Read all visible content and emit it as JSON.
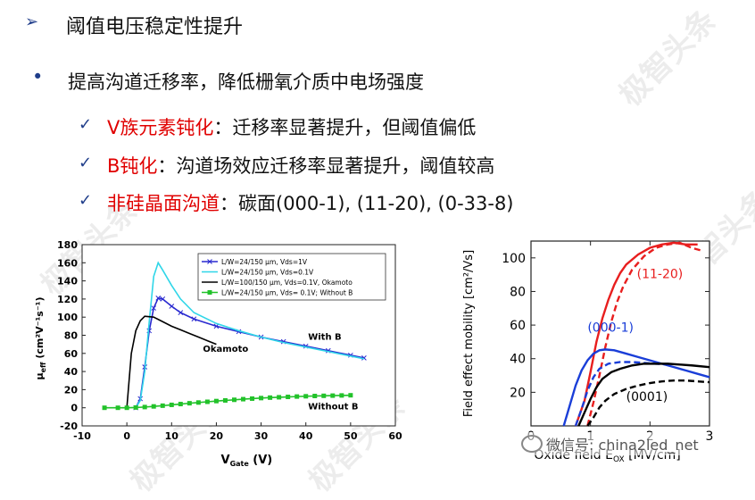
{
  "slide": {
    "title_marker": "➢",
    "title": "阈值电压稳定性提升",
    "bullet_marker": "•",
    "bullet": "提高沟道迁移率，降低栅氧介质中电场强度",
    "check_marker": "✓",
    "items": [
      {
        "highlight": "V族元素钝化",
        "text": "：迁移率显著提升，但阈值偏低"
      },
      {
        "highlight": "B钝化",
        "text": "：沟道场效应迁移率显著提升，阈值较高"
      },
      {
        "highlight": "非硅晶面沟道",
        "text": "：碳面(000-1), (11-20), (0-33-8)"
      }
    ],
    "watermark": "极智头条",
    "wechat_caption": "微信号: china2led_net",
    "highlight_color": "#e00000"
  },
  "chart_data": [
    {
      "type": "line",
      "xlabel": "V",
      "xlabel_sub": "Gate",
      "xlabel_unit": "(V)",
      "ylabel": "μ",
      "ylabel_sub": "eff",
      "ylabel_unit": "(cm²V⁻¹s⁻¹)",
      "xlim": [
        -10,
        60
      ],
      "ylim": [
        -20,
        180
      ],
      "xticks": [
        -10,
        0,
        10,
        20,
        30,
        40,
        50,
        60
      ],
      "yticks": [
        -20,
        0,
        20,
        40,
        60,
        80,
        100,
        120,
        140,
        160,
        180
      ],
      "legend_position": "top-right",
      "annotations": [
        "Okamoto",
        "With B",
        "Without B"
      ],
      "series": [
        {
          "name": "L/W=24/150 μm, Vds=1V",
          "color": "#2a2ad0",
          "marker": "x",
          "x": [
            2,
            3,
            4,
            5,
            6,
            7,
            8,
            10,
            12,
            15,
            20,
            25,
            30,
            35,
            40,
            45,
            50,
            53
          ],
          "y": [
            0,
            10,
            45,
            85,
            110,
            121,
            120,
            112,
            105,
            98,
            90,
            84,
            78,
            73,
            68,
            63,
            58,
            55
          ]
        },
        {
          "name": "L/W=24/150 μm, Vds=0.1V",
          "color": "#2fd6e8",
          "marker": "none",
          "x": [
            2,
            3,
            4,
            5,
            6,
            7,
            8,
            10,
            12,
            15,
            20,
            25,
            30,
            35,
            40,
            45,
            50,
            53
          ],
          "y": [
            0,
            8,
            40,
            95,
            145,
            160,
            152,
            135,
            120,
            105,
            93,
            85,
            78,
            72,
            67,
            62,
            57,
            54
          ]
        },
        {
          "name": "L/W=100/150 μm, Vds=0.1V, Okamoto",
          "color": "#000000",
          "marker": "none",
          "x": [
            0,
            0.5,
            1,
            2,
            3,
            4,
            6,
            8,
            10,
            12,
            14,
            16,
            18,
            20
          ],
          "y": [
            0,
            30,
            60,
            85,
            96,
            101,
            100,
            95,
            90,
            86,
            82,
            78,
            74,
            70
          ]
        },
        {
          "name": "L/W=24/150 μm, Vds= 0.1V; Without B",
          "color": "#22c22a",
          "marker": "square",
          "x": [
            -5,
            -2,
            0,
            2,
            4,
            6,
            8,
            10,
            12,
            14,
            16,
            18,
            20,
            22,
            24,
            26,
            28,
            30,
            32,
            34,
            36,
            38,
            40,
            42,
            44,
            46,
            48,
            50
          ],
          "y": [
            0,
            0,
            0,
            0.3,
            0.8,
            1.5,
            2.3,
            3.2,
            4.1,
            5,
            5.8,
            6.6,
            7.4,
            8.1,
            8.8,
            9.5,
            10.1,
            10.7,
            11.2,
            11.6,
            12,
            12.4,
            12.7,
            13,
            13.2,
            13.4,
            13.6,
            13.8
          ]
        }
      ]
    },
    {
      "type": "line",
      "xlabel": "Oxide field E",
      "xlabel_sub": "OX",
      "xlabel_unit": "[MV/cm]",
      "ylabel": "Field effect mobility [cm²/Vs]",
      "xlim": [
        0,
        3
      ],
      "ylim": [
        0,
        110
      ],
      "xticks": [
        0,
        1,
        2,
        3
      ],
      "yticks": [
        20,
        40,
        60,
        80,
        100
      ],
      "annotations": [
        "(11-20)",
        "(000-1)",
        "(0001)"
      ],
      "series": [
        {
          "group": "(11-20)",
          "style": "solid",
          "color": "#e81e1e",
          "x": [
            0.75,
            0.9,
            1.0,
            1.1,
            1.2,
            1.3,
            1.4,
            1.5,
            1.6,
            1.8,
            2.0,
            2.2,
            2.4,
            2.6,
            2.8
          ],
          "y": [
            0,
            15,
            32,
            50,
            64,
            75,
            84,
            91,
            96,
            102,
            106,
            108,
            109,
            108,
            108
          ]
        },
        {
          "group": "(11-20)",
          "style": "dashed",
          "color": "#e81e1e",
          "x": [
            0.95,
            1.05,
            1.15,
            1.25,
            1.35,
            1.45,
            1.55,
            1.7,
            1.9,
            2.1,
            2.3,
            2.5,
            2.7,
            2.9
          ],
          "y": [
            0,
            14,
            30,
            47,
            62,
            74,
            83,
            93,
            101,
            106,
            108,
            109,
            106,
            104
          ]
        },
        {
          "group": "(000-1)",
          "style": "solid",
          "color": "#1a3ed8",
          "x": [
            0.55,
            0.65,
            0.75,
            0.85,
            0.95,
            1.05,
            1.15,
            1.25,
            1.4,
            1.6,
            1.8,
            2.0,
            2.2,
            2.4,
            2.6,
            2.8,
            3.0
          ],
          "y": [
            0,
            12,
            24,
            33,
            39,
            43,
            45,
            45.5,
            45,
            43,
            41,
            39,
            37,
            35,
            33,
            31,
            29
          ]
        },
        {
          "group": "(000-1)",
          "style": "dashed",
          "color": "#1a3ed8",
          "x": [
            0.75,
            0.85,
            0.95,
            1.05,
            1.15,
            1.3,
            1.5,
            1.7,
            1.9,
            2.1,
            2.3
          ],
          "y": [
            0,
            10,
            21,
            29,
            34,
            37,
            38,
            38,
            37.5,
            37,
            36.5
          ]
        },
        {
          "group": "(0001)",
          "style": "solid",
          "color": "#000000",
          "x": [
            0.8,
            0.9,
            1.0,
            1.1,
            1.2,
            1.35,
            1.5,
            1.7,
            1.9,
            2.1,
            2.3,
            2.5,
            2.7,
            3.0
          ],
          "y": [
            0,
            8,
            16,
            23,
            28,
            32,
            34,
            36,
            37,
            37,
            37,
            36.5,
            36,
            35
          ]
        },
        {
          "group": "(0001)",
          "style": "dashed",
          "color": "#000000",
          "x": [
            0.95,
            1.05,
            1.15,
            1.25,
            1.4,
            1.6,
            1.8,
            2.0,
            2.2,
            2.4,
            2.6,
            2.8,
            3.0
          ],
          "y": [
            0,
            5,
            11,
            15,
            19,
            22,
            24,
            25.5,
            26.5,
            27,
            27,
            26.5,
            26
          ]
        }
      ]
    }
  ]
}
